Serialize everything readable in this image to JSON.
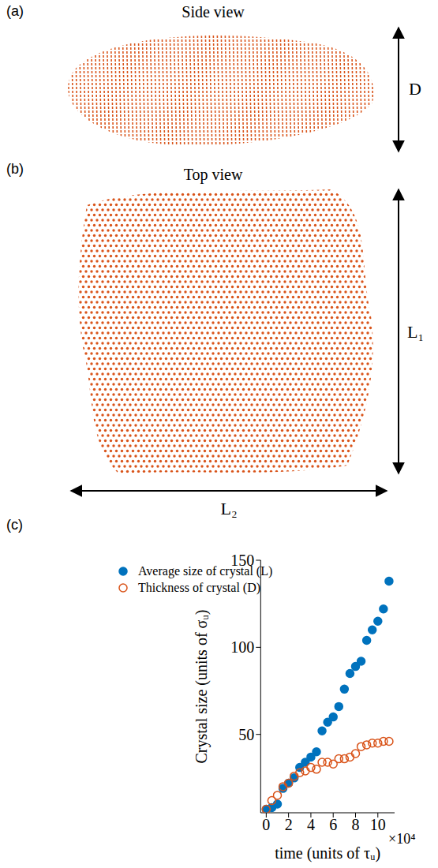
{
  "panel_a": {
    "panel_label": "(a)",
    "title": "Side view",
    "dimension_label": "D"
  },
  "panel_b": {
    "panel_label": "(b)",
    "title": "Top view",
    "height_label": "L₁",
    "width_label": "L₂"
  },
  "chart_data": {
    "panel_label": "(c)",
    "type": "scatter",
    "x_label": "time (units of τᵤ)",
    "x_multiplier": "×10⁴",
    "y_label": "Crystal size (units of σᵤ)",
    "x": [
      0,
      0.5,
      1,
      1.5,
      2,
      2.5,
      3,
      3.5,
      4,
      4.5,
      5,
      5.5,
      6,
      6.5,
      7,
      7.5,
      8,
      8.5,
      9,
      9.5,
      10,
      10.5,
      11
    ],
    "series": [
      {
        "name": "Average size of crystal (L)",
        "color": "#0072bd",
        "marker": "filled_circle",
        "values": [
          7,
          8,
          10,
          19,
          22,
          25,
          31,
          34,
          37,
          40,
          52,
          57,
          60,
          66,
          76,
          85,
          89,
          92,
          104,
          110,
          115,
          122,
          138
        ]
      },
      {
        "name": "Thickness of crystal (D)",
        "color": "#d95319",
        "marker": "open_circle",
        "values": [
          7,
          12,
          15,
          20,
          22,
          26,
          28,
          29,
          31,
          30,
          34,
          34,
          33,
          36,
          36,
          37,
          39,
          43,
          44,
          45,
          45,
          46,
          46
        ]
      }
    ],
    "xlim": [
      -0.5,
      11.5
    ],
    "xticks": [
      0,
      2,
      4,
      6,
      8,
      10
    ],
    "ylim": [
      5,
      150
    ],
    "yticks": [
      50,
      100,
      150
    ],
    "legend": "upper left"
  }
}
